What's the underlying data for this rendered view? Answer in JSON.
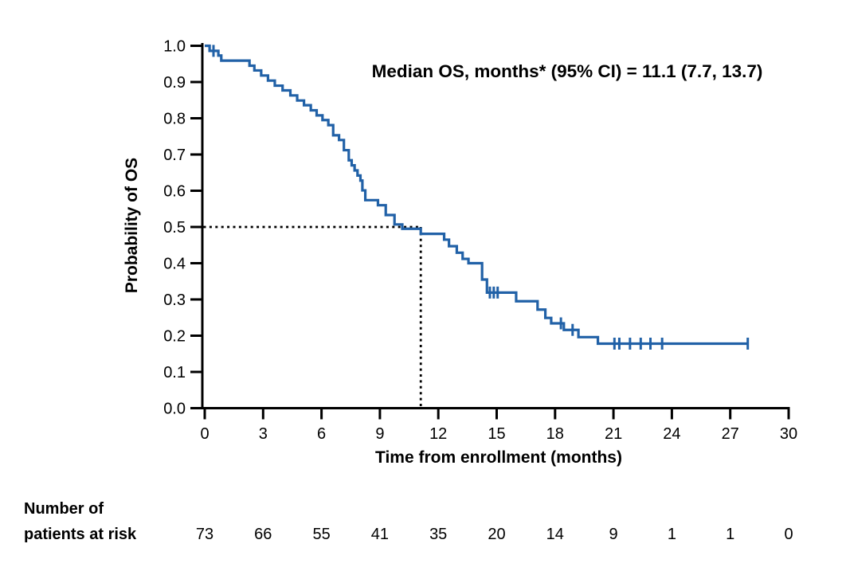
{
  "title": "Median OS, months* (95% CI) = 11.1 (7.7, 13.7)",
  "axes": {
    "y_label": "Probability of OS",
    "x_label": "Time from enrollment (months)",
    "x_ticks": [
      0,
      3,
      6,
      9,
      12,
      15,
      18,
      21,
      24,
      27,
      30
    ],
    "y_ticks": [
      "1.0",
      "0.9",
      "0.8",
      "0.7",
      "0.6",
      "0.5",
      "0.4",
      "0.3",
      "0.2",
      "0.1",
      "0.0"
    ]
  },
  "risk_table": {
    "label_line1": "Number of",
    "label_line2": "patients at risk",
    "values": [
      73,
      66,
      55,
      41,
      35,
      20,
      14,
      9,
      1,
      1,
      0
    ]
  },
  "chart_data": {
    "type": "line",
    "subtype": "kaplan-meier-step",
    "title": "Median OS, months* (95% CI) = 11.1 (7.7, 13.7)",
    "xlabel": "Time from enrollment (months)",
    "ylabel": "Probability of OS",
    "xlim": [
      0,
      30
    ],
    "ylim": [
      0.0,
      1.0
    ],
    "x_tick_step": 3,
    "y_tick_step": 0.1,
    "grid": false,
    "legend": false,
    "median_os_months": 11.1,
    "ci95_lower": 7.7,
    "ci95_upper": 13.7,
    "line_color": "#2161a7",
    "reference_line_color": "#000000",
    "reference_lines": {
      "horizontal_at_probability": 0.5,
      "vertical_at_time": 11.1,
      "style": "dotted"
    },
    "steps": [
      [
        0.0,
        1.0
      ],
      [
        0.25,
        0.986
      ],
      [
        0.7,
        0.973
      ],
      [
        0.85,
        0.959
      ],
      [
        2.3,
        0.945
      ],
      [
        2.55,
        0.932
      ],
      [
        2.9,
        0.918
      ],
      [
        3.25,
        0.904
      ],
      [
        3.6,
        0.89
      ],
      [
        4.0,
        0.877
      ],
      [
        4.4,
        0.863
      ],
      [
        4.75,
        0.849
      ],
      [
        5.1,
        0.836
      ],
      [
        5.45,
        0.822
      ],
      [
        5.75,
        0.808
      ],
      [
        6.05,
        0.795
      ],
      [
        6.35,
        0.781
      ],
      [
        6.6,
        0.753
      ],
      [
        6.9,
        0.74
      ],
      [
        7.15,
        0.712
      ],
      [
        7.4,
        0.684
      ],
      [
        7.55,
        0.67
      ],
      [
        7.7,
        0.656
      ],
      [
        7.85,
        0.642
      ],
      [
        8.0,
        0.628
      ],
      [
        8.1,
        0.601
      ],
      [
        8.25,
        0.574
      ],
      [
        8.9,
        0.56
      ],
      [
        9.3,
        0.533
      ],
      [
        9.75,
        0.507
      ],
      [
        10.15,
        0.495
      ],
      [
        11.1,
        0.481
      ],
      [
        12.3,
        0.465
      ],
      [
        12.55,
        0.447
      ],
      [
        12.95,
        0.429
      ],
      [
        13.25,
        0.412
      ],
      [
        13.55,
        0.4
      ],
      [
        14.25,
        0.355
      ],
      [
        14.5,
        0.319
      ],
      [
        16.0,
        0.295
      ],
      [
        17.1,
        0.272
      ],
      [
        17.5,
        0.249
      ],
      [
        17.8,
        0.234
      ],
      [
        18.45,
        0.216
      ],
      [
        19.2,
        0.196
      ],
      [
        20.2,
        0.178
      ]
    ],
    "end_time": 27.9,
    "censor_marks": [
      [
        0.45,
        0.986
      ],
      [
        14.65,
        0.319
      ],
      [
        14.85,
        0.319
      ],
      [
        15.05,
        0.319
      ],
      [
        18.3,
        0.234
      ],
      [
        18.9,
        0.216
      ],
      [
        21.05,
        0.178
      ],
      [
        21.3,
        0.178
      ],
      [
        21.85,
        0.178
      ],
      [
        22.4,
        0.178
      ],
      [
        22.9,
        0.178
      ],
      [
        23.5,
        0.178
      ],
      [
        27.9,
        0.178
      ]
    ],
    "number_at_risk": {
      "times": [
        0,
        3,
        6,
        9,
        12,
        15,
        18,
        21,
        24,
        27,
        30
      ],
      "values": [
        73,
        66,
        55,
        41,
        35,
        20,
        14,
        9,
        1,
        1,
        0
      ]
    }
  }
}
